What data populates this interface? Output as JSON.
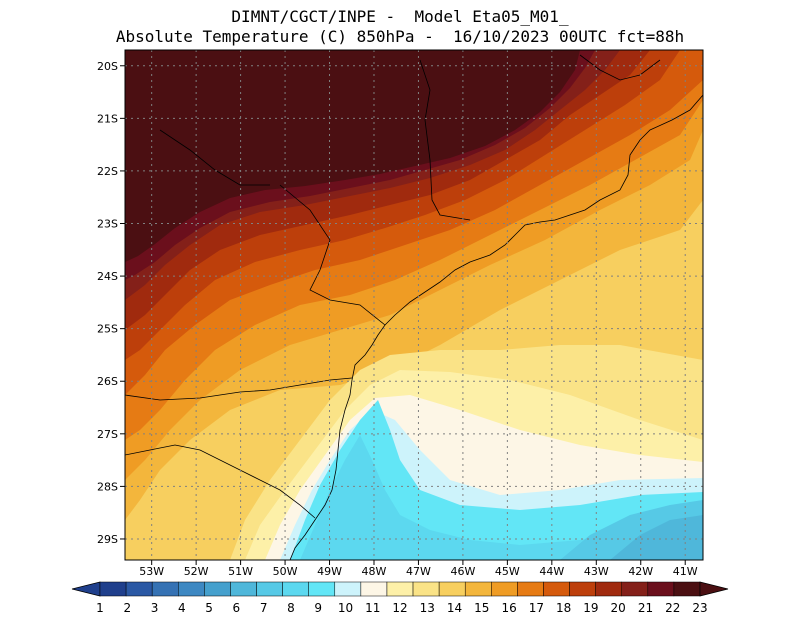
{
  "header": {
    "line1": "DIMNT/CGCT/INPE -  Model Eta05_M01_",
    "line2": "Absolute Temperature (C) 850hPa -  16/10/2023 00UTC fct=88h"
  },
  "map": {
    "lon_range": [
      -53.6,
      -40.6
    ],
    "lat_range": [
      -29.4,
      -19.7
    ],
    "lat_ticks": [
      {
        "value": -20,
        "label": "20S"
      },
      {
        "value": -21,
        "label": "21S"
      },
      {
        "value": -22,
        "label": "22S"
      },
      {
        "value": -23,
        "label": "23S"
      },
      {
        "value": -24,
        "label": "24S"
      },
      {
        "value": -25,
        "label": "25S"
      },
      {
        "value": -26,
        "label": "26S"
      },
      {
        "value": -27,
        "label": "27S"
      },
      {
        "value": -28,
        "label": "28S"
      },
      {
        "value": -29,
        "label": "29S"
      }
    ],
    "lon_ticks": [
      {
        "value": -53,
        "label": "53W"
      },
      {
        "value": -52,
        "label": "52W"
      },
      {
        "value": -51,
        "label": "51W"
      },
      {
        "value": -50,
        "label": "50W"
      },
      {
        "value": -49,
        "label": "49W"
      },
      {
        "value": -48,
        "label": "48W"
      },
      {
        "value": -47,
        "label": "47W"
      },
      {
        "value": -46,
        "label": "46W"
      },
      {
        "value": -45,
        "label": "45W"
      },
      {
        "value": -44,
        "label": "44W"
      },
      {
        "value": -43,
        "label": "43W"
      },
      {
        "value": -42,
        "label": "42W"
      },
      {
        "value": -41,
        "label": "41W"
      }
    ],
    "grid": true,
    "temperature_field": {
      "description_level": "850hPa",
      "warm_core": "northwest",
      "cold_tongue": "south-southeast coast"
    }
  },
  "colorbar": {
    "labels": [
      "1",
      "2",
      "3",
      "4",
      "5",
      "6",
      "7",
      "8",
      "9",
      "10",
      "11",
      "12",
      "13",
      "14",
      "15",
      "16",
      "17",
      "18",
      "19",
      "20",
      "21",
      "22",
      "23"
    ],
    "colors": [
      "#1f3f8c",
      "#2a58a4",
      "#3572b4",
      "#3d88c2",
      "#45a0cd",
      "#4fb7da",
      "#56c9e6",
      "#5cd8ef",
      "#62e6f6",
      "#cdf3fb",
      "#fdf6e6",
      "#fdf0a8",
      "#fae387",
      "#f7cf5f",
      "#f3b63c",
      "#ef9c24",
      "#e67b14",
      "#d55a0c",
      "#bd3f0b",
      "#a02a0e",
      "#842019",
      "#6b0f1c",
      "#4b0f12"
    ]
  }
}
